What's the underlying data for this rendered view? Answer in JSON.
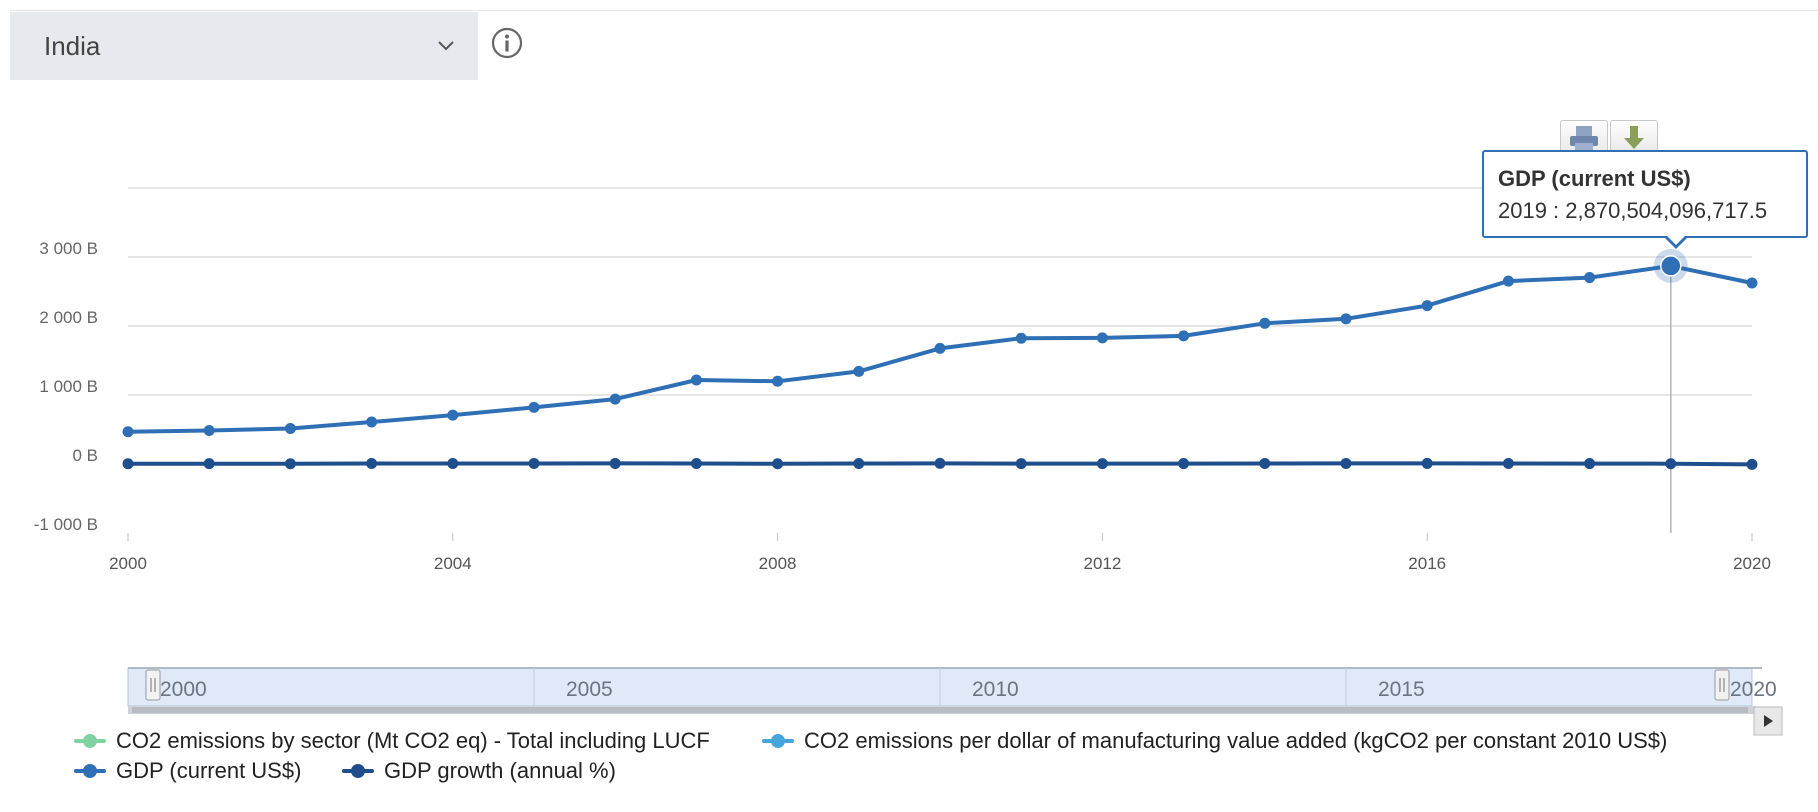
{
  "selector": {
    "country": "India",
    "icon": "chevron-down-icon"
  },
  "info": {
    "icon": "info-icon"
  },
  "toolbar": {
    "print_icon": "print-icon",
    "download_icon": "download-icon"
  },
  "tooltip": {
    "title": "GDP (current US$)",
    "value": "2019 : 2,870,504,096,717.5"
  },
  "navigator": {
    "labels": [
      "2000",
      "2005",
      "2010",
      "2015",
      "2020"
    ],
    "range": [
      2000,
      2020
    ]
  },
  "legend": [
    {
      "label": "CO2 emissions by sector (Mt CO2 eq) - Total including LUCF",
      "color": "#7fd3a3"
    },
    {
      "label": "CO2 emissions per dollar of manufacturing value added (kgCO2 per constant 2010 US$)",
      "color": "#45a6dc"
    },
    {
      "label": "GDP (current US$)",
      "color": "#2f6fb5"
    },
    {
      "label": "GDP growth (annual %)",
      "color": "#1f4e8c"
    }
  ],
  "chart_data": {
    "type": "line",
    "x": [
      2000,
      2001,
      2002,
      2003,
      2004,
      2005,
      2006,
      2007,
      2008,
      2009,
      2010,
      2011,
      2012,
      2013,
      2014,
      2015,
      2016,
      2017,
      2018,
      2019,
      2020
    ],
    "xticks": [
      "2000",
      "2004",
      "2008",
      "2012",
      "2016",
      "2020"
    ],
    "yticks": [
      "-1 000 B",
      "0 B",
      "1 000 B",
      "2 000 B",
      "3 000 B"
    ],
    "ylim": [
      -1000,
      4000
    ],
    "grid": true,
    "legend_position": "bottom",
    "series": [
      {
        "name": "GDP (current US$)",
        "color": "#2f6fb5",
        "values": [
          468,
          485,
          515,
          608,
          709,
          820,
          940,
          1217,
          1199,
          1342,
          1676,
          1823,
          1828,
          1857,
          2039,
          2104,
          2295,
          2651,
          2702,
          2871,
          2623
        ]
      },
      {
        "name": "GDP growth (annual %)",
        "color": "#1f4e8c",
        "values": [
          3.8,
          4.8,
          3.8,
          7.9,
          7.9,
          7.9,
          8.1,
          7.7,
          3.1,
          7.9,
          8.5,
          5.2,
          5.5,
          6.4,
          7.4,
          8.0,
          8.3,
          6.8,
          6.5,
          3.9,
          -5.8
        ]
      }
    ],
    "highlight": {
      "series": "GDP (current US$)",
      "x": 2019
    }
  }
}
